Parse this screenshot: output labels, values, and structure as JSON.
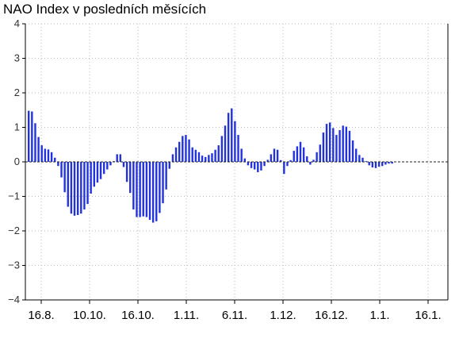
{
  "chart_data": {
    "type": "bar",
    "title": "NAO Index v posledních měsících",
    "xlabel": "",
    "ylabel": "",
    "ylim": [
      -4,
      4
    ],
    "y_ticks": [
      "4",
      "3",
      "2",
      "1",
      "0",
      "−1",
      "−2",
      "−3",
      "−4"
    ],
    "x_ticks": [
      "16.8.",
      "10.10.",
      "16.10.",
      "1.11.",
      "6.11.",
      "1.12.",
      "16.12.",
      "1.1.",
      "16.1."
    ],
    "grid": true,
    "bar_color": "#2233dd",
    "values": [
      1.48,
      1.46,
      1.12,
      0.72,
      0.48,
      0.38,
      0.36,
      0.28,
      0.12,
      -0.12,
      -0.45,
      -0.88,
      -1.3,
      -1.5,
      -1.56,
      -1.54,
      -1.5,
      -1.38,
      -1.22,
      -0.92,
      -0.72,
      -0.6,
      -0.5,
      -0.35,
      -0.22,
      -0.1,
      0.02,
      0.22,
      0.22,
      -0.15,
      -0.58,
      -0.9,
      -1.38,
      -1.6,
      -1.6,
      -1.58,
      -1.6,
      -1.68,
      -1.76,
      -1.72,
      -1.48,
      -1.2,
      -0.8,
      -0.2,
      0.22,
      0.42,
      0.58,
      0.75,
      0.78,
      0.65,
      0.42,
      0.35,
      0.28,
      0.18,
      0.14,
      0.2,
      0.25,
      0.35,
      0.48,
      0.75,
      1.05,
      1.42,
      1.55,
      1.18,
      0.78,
      0.38,
      0.1,
      -0.1,
      -0.18,
      -0.22,
      -0.3,
      -0.25,
      -0.12,
      0.06,
      0.22,
      0.38,
      0.35,
      0.05,
      -0.35,
      -0.12,
      0.05,
      0.32,
      0.45,
      0.58,
      0.42,
      0.16,
      -0.08,
      0.06,
      0.28,
      0.5,
      0.85,
      1.1,
      1.14,
      0.98,
      0.78,
      0.92,
      1.05,
      1.02,
      0.9,
      0.62,
      0.38,
      0.2,
      0.12,
      0.02,
      -0.1,
      -0.16,
      -0.18,
      -0.14,
      -0.12,
      -0.08,
      -0.05,
      -0.05
    ]
  }
}
